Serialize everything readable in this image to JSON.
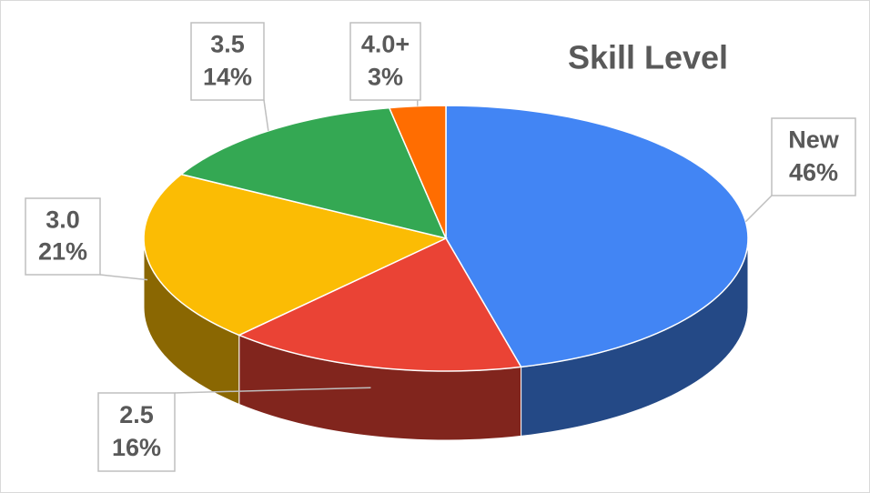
{
  "chart_data": {
    "type": "pie",
    "title": "Skill Level",
    "categories": [
      "New",
      "2.5",
      "3.0",
      "3.5",
      "4.0+"
    ],
    "values": [
      46,
      16,
      21,
      14,
      3
    ],
    "value_labels": [
      "46%",
      "16%",
      "21%",
      "14%",
      "3%"
    ],
    "colors": [
      "#4285f4",
      "#ea4335",
      "#fbbc04",
      "#34a853",
      "#ff6d01"
    ]
  }
}
